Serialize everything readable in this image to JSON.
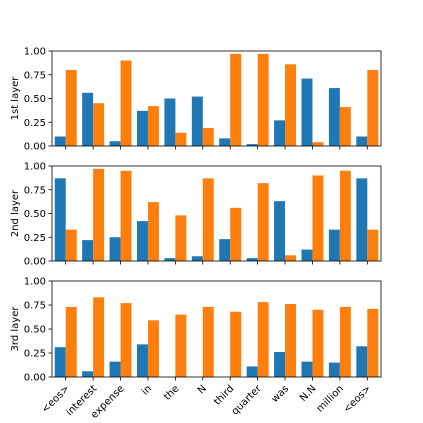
{
  "chart_data": {
    "type": "bar",
    "categories": [
      "<eos>",
      "interest",
      "expense",
      "in",
      "the",
      "N",
      "third",
      "quarter",
      "was",
      "N.N",
      "million",
      "<eos>"
    ],
    "colors": {
      "series_a": "#1f77b4",
      "series_b": "#ff7f0e"
    },
    "grid": false,
    "ylim": [
      0,
      1
    ],
    "yticks": [
      "0.00",
      "0.25",
      "0.50",
      "0.75",
      "1.00"
    ],
    "panels": [
      {
        "ylabel": "1st layer",
        "series": [
          {
            "values": [
              0.1,
              0.56,
              0.05,
              0.37,
              0.5,
              0.52,
              0.08,
              0.02,
              0.27,
              0.71,
              0.61,
              0.1
            ]
          },
          {
            "values": [
              0.8,
              0.45,
              0.9,
              0.42,
              0.14,
              0.19,
              0.97,
              0.97,
              0.86,
              0.04,
              0.41,
              0.8
            ]
          }
        ]
      },
      {
        "ylabel": "2nd layer",
        "series": [
          {
            "values": [
              0.87,
              0.22,
              0.25,
              0.42,
              0.03,
              0.05,
              0.23,
              0.03,
              0.63,
              0.12,
              0.33,
              0.87
            ]
          },
          {
            "values": [
              0.33,
              0.97,
              0.95,
              0.62,
              0.48,
              0.87,
              0.56,
              0.82,
              0.06,
              0.9,
              0.95,
              0.33
            ]
          }
        ]
      },
      {
        "ylabel": "3rd layer",
        "series": [
          {
            "values": [
              0.31,
              0.06,
              0.16,
              0.34,
              0.0,
              0.0,
              0.0,
              0.11,
              0.26,
              0.16,
              0.15,
              0.32
            ]
          },
          {
            "values": [
              0.73,
              0.83,
              0.77,
              0.59,
              0.65,
              0.73,
              0.68,
              0.78,
              0.76,
              0.7,
              0.73,
              0.71
            ]
          }
        ]
      }
    ]
  }
}
